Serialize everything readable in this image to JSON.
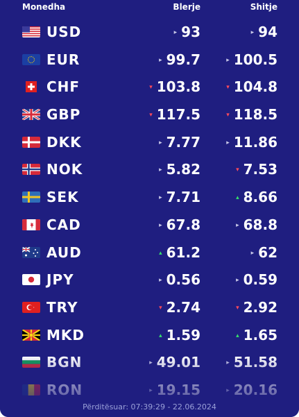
{
  "header": {
    "currency": "Monedha",
    "buy": "Blerje",
    "sell": "Shitje"
  },
  "colors": {
    "background": "#1f1e80",
    "up": "#35e06b",
    "down": "#ff4a5a",
    "neutral": "#c9c9e8"
  },
  "rates": [
    {
      "code": "USD",
      "flag": "us-flag-icon",
      "buy": "93",
      "buy_trend": "neutral",
      "sell": "94",
      "sell_trend": "neutral"
    },
    {
      "code": "EUR",
      "flag": "eu-flag-icon",
      "buy": "99.7",
      "buy_trend": "neutral",
      "sell": "100.5",
      "sell_trend": "neutral"
    },
    {
      "code": "CHF",
      "flag": "ch-flag-icon",
      "buy": "103.8",
      "buy_trend": "down",
      "sell": "104.8",
      "sell_trend": "down"
    },
    {
      "code": "GBP",
      "flag": "gb-flag-icon",
      "buy": "117.5",
      "buy_trend": "down",
      "sell": "118.5",
      "sell_trend": "down"
    },
    {
      "code": "DKK",
      "flag": "dk-flag-icon",
      "buy": "7.77",
      "buy_trend": "neutral",
      "sell": "11.86",
      "sell_trend": "neutral"
    },
    {
      "code": "NOK",
      "flag": "no-flag-icon",
      "buy": "5.82",
      "buy_trend": "neutral",
      "sell": "7.53",
      "sell_trend": "down"
    },
    {
      "code": "SEK",
      "flag": "se-flag-icon",
      "buy": "7.71",
      "buy_trend": "neutral",
      "sell": "8.66",
      "sell_trend": "up"
    },
    {
      "code": "CAD",
      "flag": "ca-flag-icon",
      "buy": "67.8",
      "buy_trend": "neutral",
      "sell": "68.8",
      "sell_trend": "neutral"
    },
    {
      "code": "AUD",
      "flag": "au-flag-icon",
      "buy": "61.2",
      "buy_trend": "up",
      "sell": "62",
      "sell_trend": "neutral"
    },
    {
      "code": "JPY",
      "flag": "jp-flag-icon",
      "buy": "0.56",
      "buy_trend": "neutral",
      "sell": "0.59",
      "sell_trend": "neutral"
    },
    {
      "code": "TRY",
      "flag": "tr-flag-icon",
      "buy": "2.74",
      "buy_trend": "down",
      "sell": "2.92",
      "sell_trend": "down"
    },
    {
      "code": "MKD",
      "flag": "mk-flag-icon",
      "buy": "1.59",
      "buy_trend": "up",
      "sell": "1.65",
      "sell_trend": "up"
    },
    {
      "code": "BGN",
      "flag": "bg-flag-icon",
      "buy": "49.01",
      "buy_trend": "neutral",
      "sell": "51.58",
      "sell_trend": "neutral"
    },
    {
      "code": "RON",
      "flag": "ro-flag-icon",
      "buy": "19.15",
      "buy_trend": "neutral",
      "sell": "20.16",
      "sell_trend": "neutral"
    }
  ],
  "footer": {
    "updated": "Përditësuar: 07:39:29 - 22.06.2024"
  }
}
